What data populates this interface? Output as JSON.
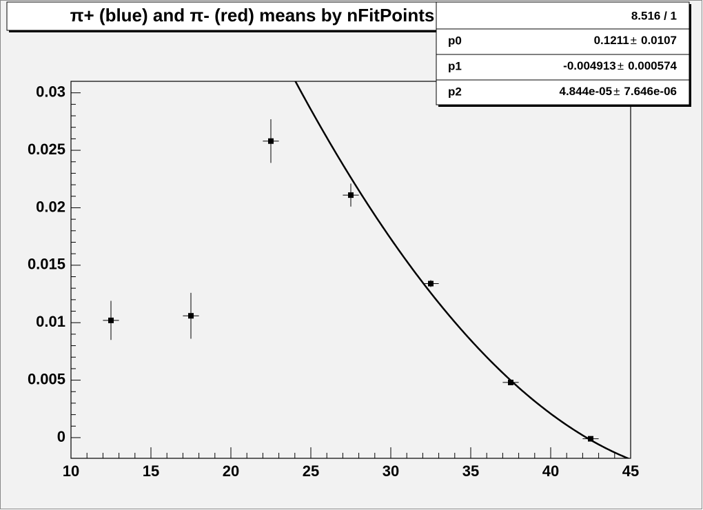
{
  "chart_data": {
    "type": "scatter",
    "title": "π+ (blue) and π- (red) means by nFitPoints",
    "x": [
      12.5,
      17.5,
      22.5,
      27.5,
      32.5,
      37.5,
      42.5
    ],
    "series": [
      {
        "color": "#000000",
        "values": [
          0.0102,
          0.0106,
          0.0258,
          0.0211,
          0.0134,
          0.0048,
          -0.0001
        ],
        "errors": [
          0.0017,
          0.002,
          0.0019,
          0.001,
          0.0003,
          0.0002,
          0.0001
        ],
        "xerrors": [
          0.5,
          0.5,
          0.5,
          0.5,
          0.5,
          0.5,
          0.5
        ]
      }
    ],
    "fit": {
      "chi2_ndf": "8.516 / 1",
      "symbol": "±",
      "color": "#000000",
      "params": [
        {
          "name": "p0",
          "value": 0.1211,
          "error": 0.0107
        },
        {
          "name": "p1",
          "value": -0.004913,
          "error": 0.000574
        },
        {
          "name": "p2",
          "value": {
            "value": 4.844e-05,
            "label": "4.844e-05"
          },
          "error": {
            "value": 7.646e-06,
            "label": "7.646e-06"
          }
        }
      ]
    },
    "xlim": [
      10,
      45
    ],
    "ylim": [
      -0.0018,
      0.031
    ],
    "xticks": [
      10,
      15,
      20,
      25,
      30,
      35,
      40,
      45
    ],
    "yticks": [
      0,
      0.005,
      0.01,
      0.015,
      0.02,
      0.025,
      0.03
    ]
  }
}
